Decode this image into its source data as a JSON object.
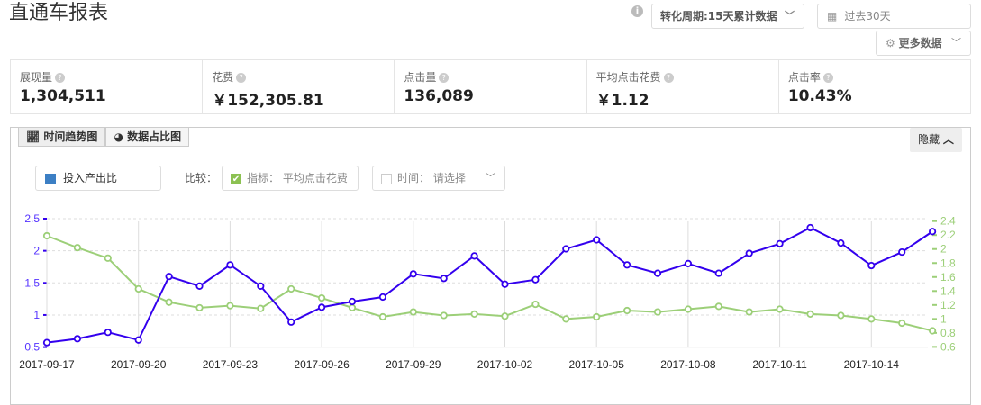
{
  "header": {
    "title": "直通车报表",
    "conversion_select": "转化周期:15天累计数据",
    "date_select": "过去30天",
    "more_data": "更多数据"
  },
  "stats": [
    {
      "label": "展现量",
      "value": "1,304,511"
    },
    {
      "label": "花费",
      "value": "￥152,305.81"
    },
    {
      "label": "点击量",
      "value": "136,089"
    },
    {
      "label": "平均点击花费",
      "value": "￥1.12"
    },
    {
      "label": "点击率",
      "value": "10.43%"
    }
  ],
  "tabs": [
    {
      "label": "时间趋势图",
      "active": true
    },
    {
      "label": "数据占比图",
      "active": false
    }
  ],
  "hide_button": "隐藏",
  "controls": {
    "legend": "投入产出比",
    "compare_label": "比较：",
    "indicator": "指标： 平均点击花费",
    "indicator_checked": true,
    "time": "时间： 请选择",
    "time_checked": false
  },
  "colors": {
    "primary": "#3300ee",
    "secondary": "#9ccf78",
    "legend_square": "#3c7fc4"
  },
  "chart_data": {
    "type": "line",
    "x": [
      "2017-09-17",
      "2017-09-18",
      "2017-09-19",
      "2017-09-20",
      "2017-09-21",
      "2017-09-22",
      "2017-09-23",
      "2017-09-24",
      "2017-09-25",
      "2017-09-26",
      "2017-09-27",
      "2017-09-28",
      "2017-09-29",
      "2017-09-30",
      "2017-10-01",
      "2017-10-02",
      "2017-10-03",
      "2017-10-04",
      "2017-10-05",
      "2017-10-06",
      "2017-10-07",
      "2017-10-08",
      "2017-10-09",
      "2017-10-10",
      "2017-10-11",
      "2017-10-12",
      "2017-10-13",
      "2017-10-14",
      "2017-10-15",
      "2017-10-16"
    ],
    "xticks": [
      "2017-09-17",
      "2017-09-20",
      "2017-09-23",
      "2017-09-26",
      "2017-09-29",
      "2017-10-02",
      "2017-10-05",
      "2017-10-08",
      "2017-10-11",
      "2017-10-14"
    ],
    "series": [
      {
        "name": "投入产出比",
        "axis": "left",
        "values": [
          0.57,
          0.63,
          0.73,
          0.61,
          1.6,
          1.45,
          1.78,
          1.45,
          0.89,
          1.12,
          1.21,
          1.28,
          1.64,
          1.57,
          1.92,
          1.48,
          1.55,
          2.03,
          2.17,
          1.78,
          1.65,
          1.8,
          1.65,
          1.96,
          2.11,
          2.36,
          2.12,
          1.77,
          1.98,
          2.3
        ]
      },
      {
        "name": "平均点击花费",
        "axis": "right",
        "values": [
          2.19,
          2.02,
          1.87,
          1.43,
          1.24,
          1.16,
          1.19,
          1.15,
          1.43,
          1.3,
          1.16,
          1.03,
          1.1,
          1.05,
          1.07,
          1.04,
          1.21,
          1.0,
          1.03,
          1.12,
          1.1,
          1.14,
          1.18,
          1.1,
          1.14,
          1.07,
          1.05,
          1.0,
          0.94,
          0.83
        ]
      }
    ],
    "yleft": {
      "range": [
        0.5,
        2.5
      ],
      "ticks": [
        "2.5",
        "2",
        "1.5",
        "1",
        "0.5"
      ]
    },
    "yright": {
      "range": [
        0.6,
        2.4
      ],
      "ticks": [
        "2.4",
        "2.2",
        "2",
        "1.8",
        "1.6",
        "1.4",
        "1.2",
        "1",
        "0.8",
        "0.6"
      ]
    },
    "grid": true
  }
}
